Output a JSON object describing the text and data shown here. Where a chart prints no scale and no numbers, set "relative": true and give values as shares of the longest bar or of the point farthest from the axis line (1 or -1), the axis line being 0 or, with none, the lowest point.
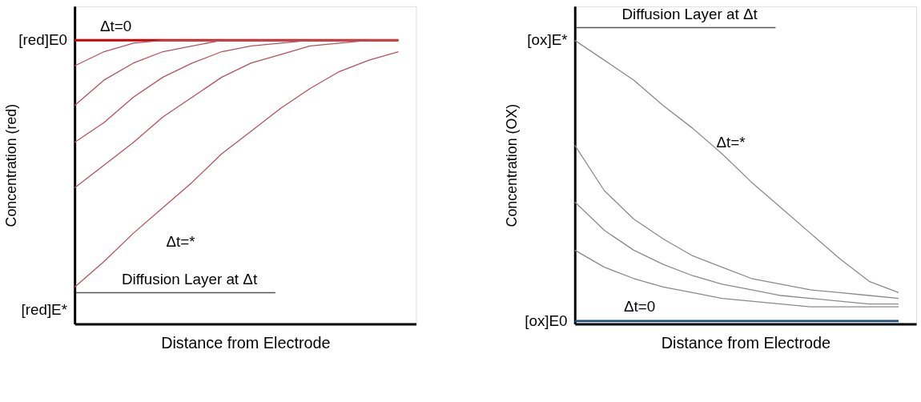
{
  "chart_data": [
    {
      "type": "line",
      "relative": true,
      "xlabel": "Distance from Electrode",
      "ylabel": "Concentration (red)",
      "categories": [
        null,
        null,
        null,
        null,
        null,
        null,
        null,
        null,
        null,
        null,
        null,
        null
      ],
      "series": [
        {
          "color": "#d00000",
          "values": [
            1,
            1,
            1,
            1,
            1,
            1,
            1,
            1,
            1,
            1,
            1,
            1
          ]
        },
        {
          "color": "#b8505a",
          "values": [
            0.91,
            0.96,
            0.99,
            1,
            1,
            1,
            1,
            1,
            1,
            1,
            1,
            1
          ]
        },
        {
          "color": "#b8505a",
          "values": [
            0.77,
            0.86,
            0.92,
            0.96,
            0.98,
            1,
            1,
            1,
            1,
            1,
            1,
            1
          ]
        },
        {
          "color": "#b8505a",
          "values": [
            0.64,
            0.71,
            0.8,
            0.87,
            0.92,
            0.96,
            0.98,
            0.99,
            1,
            1,
            1,
            1
          ]
        },
        {
          "color": "#b8505a",
          "values": [
            0.48,
            0.56,
            0.64,
            0.73,
            0.8,
            0.87,
            0.92,
            0.95,
            0.98,
            0.99,
            1,
            1
          ]
        },
        {
          "color": "#b8505a",
          "values": [
            0.13,
            0.22,
            0.32,
            0.41,
            0.5,
            0.6,
            0.68,
            0.76,
            0.83,
            0.89,
            0.93,
            0.96
          ]
        }
      ],
      "annotations": [
        "[red]E0",
        "[red]E*",
        "Δt=0",
        "Δt=*",
        "Diffusion Layer at Δt"
      ]
    },
    {
      "type": "line",
      "relative": true,
      "xlabel": "Distance from Electrode",
      "ylabel": "Concentration (OX)",
      "categories": [
        null,
        null,
        null,
        null,
        null,
        null,
        null,
        null,
        null,
        null,
        null,
        null
      ],
      "series": [
        {
          "color": "#1f4e79",
          "values": [
            0.01,
            0.01,
            0.01,
            0.01,
            0.01,
            0.01,
            0.01,
            0.01,
            0.01,
            0.01,
            0.01,
            0.01
          ]
        },
        {
          "color": "#8a8a8a",
          "values": [
            1,
            0.93,
            0.86,
            0.77,
            0.69,
            0.6,
            0.5,
            0.41,
            0.32,
            0.23,
            0.15,
            0.11
          ]
        },
        {
          "color": "#8a8a8a",
          "values": [
            0.63,
            0.47,
            0.37,
            0.3,
            0.24,
            0.2,
            0.16,
            0.14,
            0.12,
            0.11,
            0.1,
            0.09
          ]
        },
        {
          "color": "#8a8a8a",
          "values": [
            0.43,
            0.33,
            0.26,
            0.21,
            0.17,
            0.14,
            0.12,
            0.1,
            0.09,
            0.08,
            0.07,
            0.07
          ]
        },
        {
          "color": "#8a8a8a",
          "values": [
            0.26,
            0.2,
            0.16,
            0.13,
            0.11,
            0.09,
            0.08,
            0.07,
            0.06,
            0.06,
            0.06,
            0.06
          ]
        }
      ],
      "annotations": [
        "[ox]E*",
        "[ox]E0",
        "Δt=*",
        "Δt=0",
        "Diffusion Layer at Δt"
      ]
    }
  ]
}
